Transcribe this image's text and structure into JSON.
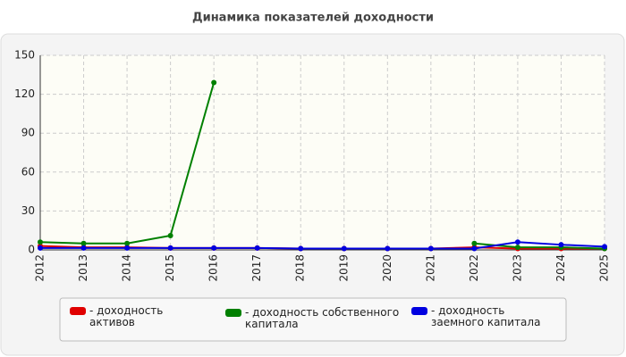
{
  "chart_data": {
    "type": "line",
    "title": "Динамика показателей доходности",
    "categories": [
      "2012",
      "2013",
      "2014",
      "2015",
      "2016",
      "2017",
      "2018",
      "2019",
      "2020",
      "2021",
      "2022",
      "2023",
      "2024",
      "2025"
    ],
    "ylim": [
      0,
      150
    ],
    "yticks": [
      0,
      30,
      60,
      90,
      120,
      150
    ],
    "grid": true,
    "series": [
      {
        "name": "- доходность активов",
        "color": "#e00000",
        "values": [
          3,
          2,
          2,
          1.5,
          1.5,
          1.5,
          1,
          1,
          1,
          1,
          2,
          1,
          1,
          1
        ]
      },
      {
        "name": "- доходность собственного капитала",
        "color": "#008000",
        "values": [
          6,
          5,
          5,
          11,
          129,
          null,
          null,
          null,
          null,
          null,
          5,
          2,
          2,
          1
        ]
      },
      {
        "name": "- доходность заемного капитала",
        "color": "#0000e0",
        "values": [
          1.5,
          1.5,
          1.5,
          1.5,
          1.5,
          1.5,
          1,
          1,
          1,
          1,
          1,
          6,
          4,
          2.5
        ]
      }
    ]
  }
}
